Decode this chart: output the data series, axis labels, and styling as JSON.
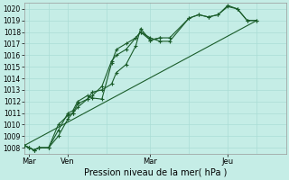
{
  "title": "",
  "xlabel": "Pression niveau de la mer( hPa )",
  "ylabel": "",
  "ylim": [
    1007.5,
    1020.5
  ],
  "xlim": [
    0,
    27
  ],
  "yticks": [
    1008,
    1009,
    1010,
    1011,
    1012,
    1013,
    1014,
    1015,
    1016,
    1017,
    1018,
    1019,
    1020
  ],
  "xtick_positions": [
    0.5,
    4.5,
    13,
    21
  ],
  "xtick_labels": [
    "Mar",
    "Ven",
    "Mar",
    "Jeu"
  ],
  "vline_positions": [
    2.5,
    8.5,
    17,
    24
  ],
  "background_color": "#c5ede6",
  "grid_color": "#aaddd5",
  "line_color": "#1a5c2a",
  "line_width": 0.8,
  "marker": "+",
  "marker_size": 3,
  "series1": [
    [
      0,
      1008.2
    ],
    [
      0.5,
      1008.0
    ],
    [
      1,
      1007.8
    ],
    [
      1.5,
      1008.0
    ],
    [
      2.5,
      1008.0
    ],
    [
      3.5,
      1010.0
    ],
    [
      4.5,
      1010.8
    ],
    [
      5,
      1011.0
    ],
    [
      5.5,
      1011.8
    ],
    [
      6.5,
      1012.2
    ],
    [
      7,
      1012.5
    ],
    [
      8,
      1013.3
    ],
    [
      9,
      1015.5
    ],
    [
      9.5,
      1016.0
    ],
    [
      10.5,
      1016.5
    ],
    [
      11.5,
      1017.5
    ],
    [
      12,
      1018.0
    ],
    [
      13,
      1017.5
    ],
    [
      14,
      1017.2
    ],
    [
      15,
      1017.2
    ],
    [
      17,
      1019.2
    ],
    [
      18,
      1019.5
    ],
    [
      19,
      1019.3
    ],
    [
      20,
      1019.5
    ],
    [
      21,
      1020.2
    ],
    [
      22,
      1020.0
    ],
    [
      23,
      1019.0
    ],
    [
      24,
      1019.0
    ]
  ],
  "series2": [
    [
      0,
      1008.2
    ],
    [
      0.5,
      1008.0
    ],
    [
      1,
      1007.8
    ],
    [
      1.5,
      1008.0
    ],
    [
      2.5,
      1008.0
    ],
    [
      3.5,
      1009.0
    ],
    [
      4.5,
      1010.5
    ],
    [
      5,
      1011.0
    ],
    [
      5.5,
      1011.5
    ],
    [
      6.5,
      1012.2
    ],
    [
      7,
      1012.8
    ],
    [
      8,
      1013.0
    ],
    [
      9,
      1013.5
    ],
    [
      9.5,
      1014.5
    ],
    [
      10.5,
      1015.2
    ],
    [
      11.5,
      1016.8
    ],
    [
      12,
      1018.3
    ],
    [
      13,
      1017.3
    ],
    [
      14,
      1017.5
    ],
    [
      15,
      1017.5
    ],
    [
      17,
      1019.2
    ],
    [
      18,
      1019.5
    ],
    [
      19,
      1019.3
    ],
    [
      20,
      1019.5
    ],
    [
      21,
      1020.3
    ],
    [
      22,
      1020.0
    ],
    [
      23,
      1019.0
    ],
    [
      24,
      1019.0
    ]
  ],
  "series3_straight": [
    [
      0,
      1008.2
    ],
    [
      24,
      1019.0
    ]
  ],
  "series4": [
    [
      0,
      1008.2
    ],
    [
      0.5,
      1008.0
    ],
    [
      1,
      1007.8
    ],
    [
      1.5,
      1008.0
    ],
    [
      2.5,
      1008.0
    ],
    [
      3.5,
      1009.5
    ],
    [
      4.5,
      1011.0
    ],
    [
      5,
      1011.2
    ],
    [
      5.5,
      1012.0
    ],
    [
      6.5,
      1012.5
    ],
    [
      7,
      1012.3
    ],
    [
      8,
      1012.2
    ],
    [
      9,
      1015.3
    ],
    [
      9.5,
      1016.5
    ],
    [
      10.5,
      1017.0
    ],
    [
      11.5,
      1017.5
    ],
    [
      12,
      1018.0
    ],
    [
      13,
      1017.3
    ],
    [
      14,
      1017.5
    ]
  ]
}
